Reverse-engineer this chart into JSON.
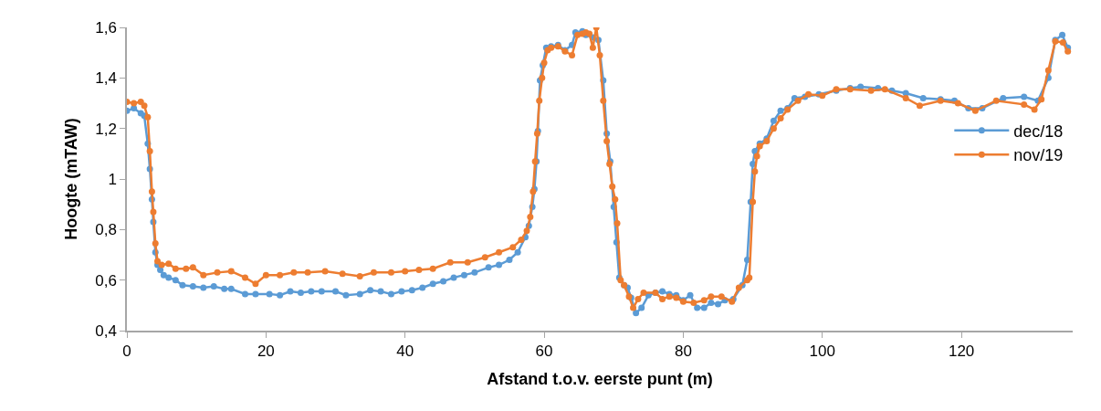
{
  "chart_data": {
    "type": "line",
    "xlabel": "Afstand t.o.v. eerste punt (m)",
    "ylabel": "Hoogte (mTAW)",
    "xlim": [
      0,
      136
    ],
    "xticks": [
      0,
      20,
      40,
      60,
      80,
      100,
      120
    ],
    "ylim": [
      0.4,
      1.6
    ],
    "yticks": [
      {
        "value": 0.4,
        "label": "0,4"
      },
      {
        "value": 0.6,
        "label": "0,6"
      },
      {
        "value": 0.8,
        "label": "0,8"
      },
      {
        "value": 1,
        "label": "1"
      },
      {
        "value": 1.2,
        "label": "1,2"
      },
      {
        "value": 1.4,
        "label": "1,4"
      },
      {
        "value": 1.6,
        "label": "1,6"
      }
    ],
    "legend": "right",
    "marker": "circle",
    "line_style": "solid",
    "series": [
      {
        "name": "dec/18",
        "color": "#5b9bd5",
        "x": [
          0,
          1,
          2,
          2.5,
          3,
          3.3,
          3.6,
          3.8,
          4.1,
          4.4,
          4.8,
          5.3,
          6,
          7,
          8,
          9.5,
          11,
          12.5,
          14,
          15,
          17,
          18.5,
          20.5,
          22,
          23.5,
          25,
          26.5,
          28,
          30,
          31.5,
          33.5,
          35,
          36.5,
          38,
          39.5,
          41,
          42.5,
          44,
          45.5,
          47,
          48.5,
          50,
          52,
          53.5,
          55,
          56.2,
          57.3,
          57.8,
          58.3,
          58.6,
          58.9,
          59.1,
          59.4,
          59.8,
          60.3,
          61,
          62,
          63,
          64,
          64.5,
          65.5,
          66,
          67,
          67.8,
          68.5,
          69,
          69.5,
          70,
          70.4,
          70.8,
          71.5,
          72,
          72.5,
          73.2,
          74,
          75,
          76,
          77,
          78,
          79,
          80,
          81,
          82,
          83,
          84,
          85,
          86,
          87.2,
          88.5,
          89.2,
          89.7,
          90,
          90.3,
          91,
          92,
          93,
          94,
          95,
          96,
          97.5,
          99.5,
          102,
          104,
          105.5,
          108,
          110,
          112,
          114.5,
          117,
          119,
          121,
          123,
          126,
          129,
          131,
          132.5,
          133.5,
          134.5,
          135.3
        ],
        "values": [
          1.27,
          1.28,
          1.26,
          1.25,
          1.14,
          1.04,
          0.92,
          0.83,
          0.71,
          0.66,
          0.64,
          0.62,
          0.61,
          0.6,
          0.58,
          0.575,
          0.57,
          0.575,
          0.565,
          0.565,
          0.545,
          0.545,
          0.545,
          0.54,
          0.555,
          0.55,
          0.555,
          0.555,
          0.555,
          0.54,
          0.545,
          0.56,
          0.555,
          0.545,
          0.555,
          0.56,
          0.57,
          0.585,
          0.595,
          0.61,
          0.62,
          0.63,
          0.65,
          0.66,
          0.68,
          0.71,
          0.77,
          0.815,
          0.89,
          0.96,
          1.07,
          1.19,
          1.39,
          1.45,
          1.52,
          1.525,
          1.53,
          1.51,
          1.53,
          1.58,
          1.585,
          1.57,
          1.56,
          1.55,
          1.39,
          1.18,
          1.07,
          0.89,
          0.75,
          0.61,
          0.58,
          0.57,
          0.53,
          0.47,
          0.49,
          0.54,
          0.55,
          0.555,
          0.545,
          0.54,
          0.52,
          0.54,
          0.49,
          0.49,
          0.51,
          0.505,
          0.52,
          0.525,
          0.58,
          0.68,
          0.91,
          1.06,
          1.11,
          1.14,
          1.16,
          1.23,
          1.27,
          1.28,
          1.32,
          1.325,
          1.335,
          1.35,
          1.36,
          1.365,
          1.36,
          1.35,
          1.34,
          1.32,
          1.315,
          1.31,
          1.28,
          1.28,
          1.32,
          1.325,
          1.31,
          1.4,
          1.55,
          1.57,
          1.52
        ]
      },
      {
        "name": "nov/19",
        "color": "#ed7d31",
        "x": [
          0,
          1,
          2,
          2.5,
          3,
          3.3,
          3.6,
          3.8,
          4.1,
          4.4,
          5,
          6,
          7,
          8.5,
          9.5,
          11,
          13,
          15,
          17,
          18.5,
          20,
          22,
          24,
          26,
          28.5,
          31,
          33.5,
          35.5,
          38,
          40,
          42,
          44,
          46.5,
          49,
          51.5,
          53.5,
          55.5,
          56.7,
          57.5,
          58,
          58.4,
          58.7,
          59,
          59.3,
          59.7,
          60,
          60.5,
          61,
          62,
          63,
          64,
          64.8,
          65.5,
          66,
          66.5,
          67,
          67.5,
          68,
          68.5,
          69,
          69.4,
          69.8,
          70.2,
          70.5,
          71,
          71.5,
          72.2,
          72.8,
          73.5,
          74.3,
          76,
          77,
          78,
          79,
          80,
          81.5,
          83,
          84,
          85.5,
          87,
          88,
          89.2,
          89.5,
          90,
          90.3,
          90.6,
          91,
          92,
          93,
          94,
          95,
          96.5,
          98,
          100,
          102,
          104,
          107,
          109,
          112,
          114,
          117,
          119.5,
          122,
          125,
          129,
          130.5,
          131.5,
          132.5,
          133.5,
          134.6,
          135.3
        ],
        "values": [
          1.305,
          1.3,
          1.305,
          1.29,
          1.245,
          1.11,
          0.95,
          0.87,
          0.745,
          0.675,
          0.66,
          0.665,
          0.645,
          0.645,
          0.65,
          0.62,
          0.63,
          0.635,
          0.61,
          0.585,
          0.62,
          0.62,
          0.63,
          0.63,
          0.635,
          0.625,
          0.615,
          0.63,
          0.63,
          0.635,
          0.64,
          0.645,
          0.67,
          0.67,
          0.69,
          0.71,
          0.73,
          0.76,
          0.795,
          0.85,
          0.95,
          1.07,
          1.18,
          1.31,
          1.4,
          1.46,
          1.51,
          1.52,
          1.525,
          1.505,
          1.49,
          1.57,
          1.575,
          1.58,
          1.575,
          1.52,
          1.6,
          1.49,
          1.31,
          1.15,
          1.06,
          0.97,
          0.92,
          0.825,
          0.6,
          0.58,
          0.535,
          0.49,
          0.525,
          0.55,
          0.55,
          0.525,
          0.535,
          0.53,
          0.515,
          0.51,
          0.52,
          0.535,
          0.535,
          0.515,
          0.57,
          0.6,
          0.61,
          0.91,
          1.03,
          1.09,
          1.13,
          1.15,
          1.2,
          1.24,
          1.275,
          1.31,
          1.335,
          1.33,
          1.355,
          1.355,
          1.35,
          1.355,
          1.32,
          1.29,
          1.31,
          1.3,
          1.27,
          1.31,
          1.295,
          1.275,
          1.315,
          1.43,
          1.545,
          1.54,
          1.505
        ]
      }
    ]
  }
}
